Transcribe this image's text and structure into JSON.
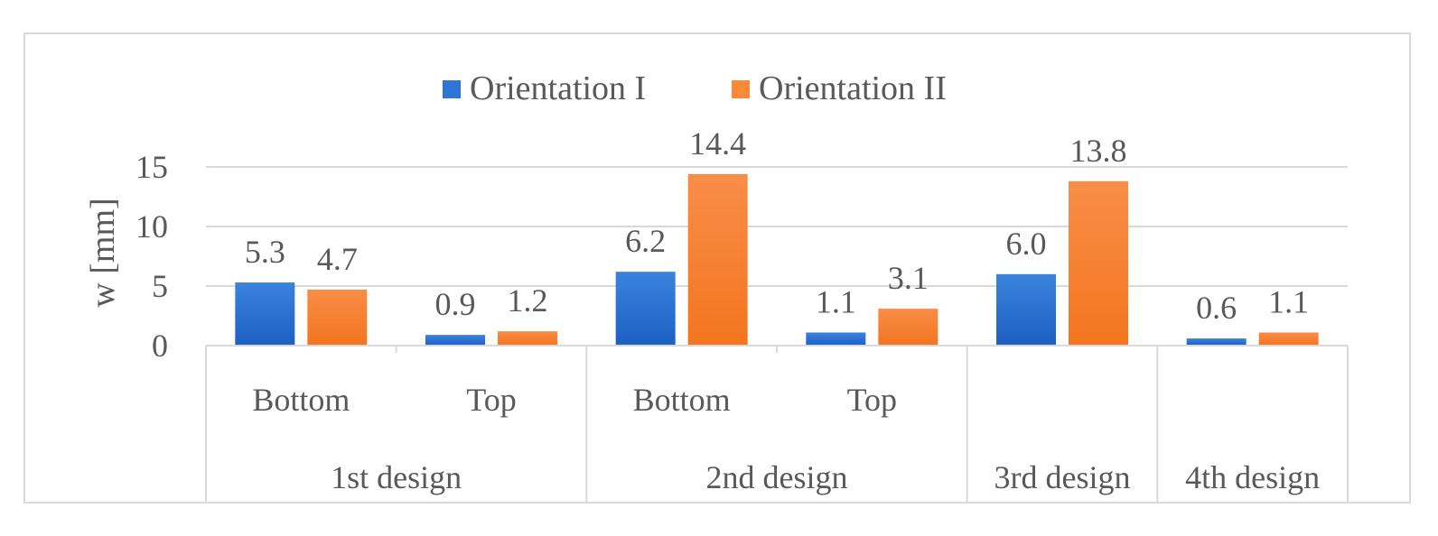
{
  "chart_data": {
    "type": "bar",
    "ylabel": "w [mm]",
    "ylim": [
      0,
      15
    ],
    "yticks": [
      0,
      5,
      10,
      15
    ],
    "grid": true,
    "legend_position": "top",
    "groups": [
      {
        "label": "1st design",
        "categories": [
          "Bottom",
          "Top"
        ]
      },
      {
        "label": "2nd design",
        "categories": [
          "Bottom",
          "Top"
        ]
      },
      {
        "label": "3rd design",
        "categories": [
          ""
        ]
      },
      {
        "label": "4th design",
        "categories": [
          ""
        ]
      }
    ],
    "series": [
      {
        "name": "Orientation I",
        "color": "#2e75d6",
        "values": [
          5.3,
          0.9,
          6.2,
          1.1,
          6.0,
          0.6
        ],
        "labels": [
          "5.3",
          "0.9",
          "6.2",
          "1.1",
          "6.0",
          "0.6"
        ]
      },
      {
        "name": "Orientation II",
        "color": "#f98a3a",
        "values": [
          4.7,
          1.2,
          14.4,
          3.1,
          13.8,
          1.1
        ],
        "labels": [
          "4.7",
          "1.2",
          "14.4",
          "3.1",
          "13.8",
          "1.1"
        ]
      }
    ]
  }
}
